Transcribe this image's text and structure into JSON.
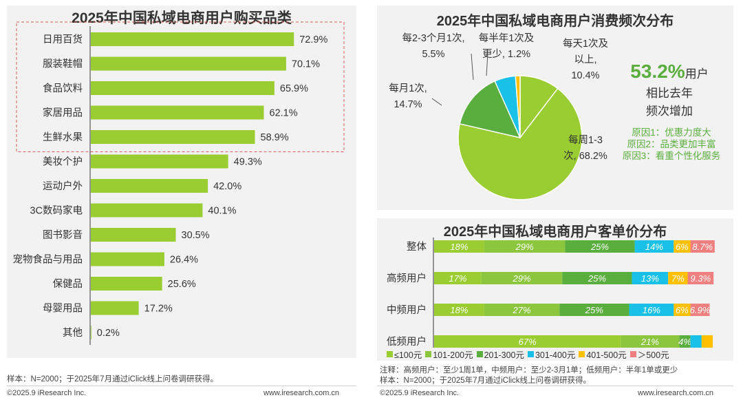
{
  "colors": {
    "green_light": "#9ACD32",
    "green_mid": "#8CC63F",
    "green_dark": "#5AAE3E",
    "cyan": "#19C1E8",
    "yellow": "#FFC000",
    "pink": "#F08080",
    "headline_green": "#5AAE3E"
  },
  "left": {
    "chart_data": {
      "type": "bar",
      "orientation": "horizontal",
      "title": "2025年中国私域电商用户购买品类",
      "categories": [
        "日用百货",
        "服装鞋帽",
        "食品饮料",
        "家居用品",
        "生鲜水果",
        "美妆个护",
        "运动户外",
        "3C数码家电",
        "图书影音",
        "宠物食品与用品",
        "保健品",
        "母婴用品",
        "其他"
      ],
      "values": [
        72.9,
        70.1,
        65.9,
        62.1,
        58.9,
        49.3,
        42.0,
        40.1,
        30.5,
        26.4,
        25.6,
        17.2,
        0.2
      ],
      "labels": [
        "72.9%",
        "70.1%",
        "65.9%",
        "62.1%",
        "58.9%",
        "49.3%",
        "42.0%",
        "40.1%",
        "30.5%",
        "26.4%",
        "25.6%",
        "17.2%",
        "0.2%"
      ],
      "xlim": [
        0,
        100
      ],
      "highlighted_count": 5
    },
    "footer_note": "样本：N=2000；于2025年7月通过iClick线上问卷调研获得。",
    "copyright": "©2025.9 iResearch Inc.",
    "website": "www.iresearch.com.cn"
  },
  "pie": {
    "chart_data": {
      "type": "pie",
      "title": "2025年中国私域电商用户消费频次分布",
      "slices": [
        {
          "name": "每天1次及以上",
          "value": 10.4,
          "label_lines": [
            "每天1次及",
            "以上,",
            "10.4%"
          ]
        },
        {
          "name": "每周1-3次",
          "value": 68.2,
          "label_lines": [
            "每周1-3",
            "次, 68.2%"
          ]
        },
        {
          "name": "每月1次",
          "value": 14.7,
          "label_lines": [
            "每月1次,",
            "14.7%"
          ]
        },
        {
          "name": "每2-3个月1次",
          "value": 5.5,
          "label_lines": [
            "每2-3个月1次,",
            "5.5%"
          ]
        },
        {
          "name": "每半年1次及更少",
          "value": 1.2,
          "label_lines": [
            "每半年1次及",
            "更少, 1.2%"
          ]
        }
      ]
    },
    "headline_value": "53.2%",
    "headline_unit": "用户",
    "headline_line2": "相比去年",
    "headline_line3": "频次增加",
    "reasons": [
      "原因1：优惠力度大",
      "原因2：品类更加丰富",
      "原因3：看重个性化服务"
    ]
  },
  "stack": {
    "chart_data": {
      "type": "bar",
      "stacked": true,
      "orientation": "horizontal",
      "title": "2025年中国私域电商用户客单价分布",
      "categories": [
        "整体",
        "高频用户",
        "中频用户",
        "低频用户"
      ],
      "series": [
        {
          "name": "≤100元",
          "values": [
            18,
            17,
            18,
            67
          ],
          "labels": [
            "18%",
            "17%",
            "18%",
            "67%"
          ]
        },
        {
          "name": "101-200元",
          "values": [
            29,
            29,
            27,
            21
          ],
          "labels": [
            "29%",
            "29%",
            "27%",
            "21%"
          ]
        },
        {
          "name": "201-300元",
          "values": [
            25,
            25,
            25,
            4
          ],
          "labels": [
            "25%",
            "25%",
            "25%",
            "4%"
          ]
        },
        {
          "name": "301-400元",
          "values": [
            14,
            13,
            16,
            4
          ],
          "labels": [
            "14%",
            "13%",
            "16%",
            ""
          ]
        },
        {
          "name": "401-500元",
          "values": [
            6,
            7,
            6,
            4
          ],
          "labels": [
            "6%",
            "7%",
            "6%",
            ""
          ]
        },
        {
          "name": "＞500元",
          "values": [
            8.7,
            9.3,
            6.9,
            0
          ],
          "labels": [
            "8.7%",
            "9.3%",
            "6.9%",
            ""
          ]
        }
      ]
    },
    "note_line1": "注释：高频用户：至少1周1单，中频用户：至少2-3月1单；低频用户：半年1单或更少",
    "note_line2": "样本：N=2000；于2025年7月通过iClick线上问卷调研获得。",
    "copyright": "©2025.9 iResearch Inc.",
    "website": "www.iresearch.com.cn"
  }
}
